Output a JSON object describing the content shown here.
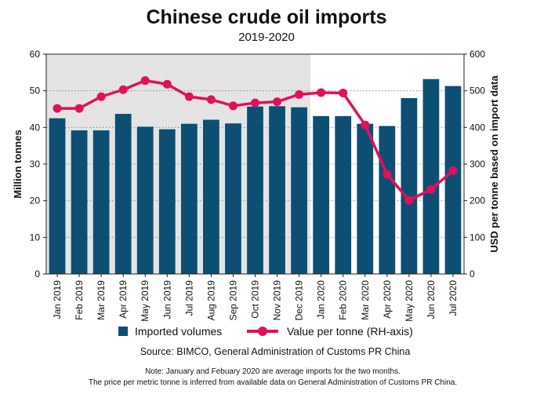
{
  "chart_data": {
    "type": "bar",
    "title": "Chinese crude oil imports",
    "subtitle": "2019-2020",
    "ylabel": "Million tonnes",
    "ylabel_right": "USD per tonne based on import data",
    "ylim": [
      0,
      60
    ],
    "ylim_right": [
      0,
      600
    ],
    "yticks": [
      0,
      10,
      20,
      30,
      40,
      50,
      60
    ],
    "yticks_right": [
      0,
      100,
      200,
      300,
      400,
      500,
      600
    ],
    "categories": [
      "Jan 2019",
      "Feb 2019",
      "Mar 2019",
      "Apr 2019",
      "May 2019",
      "Jun 2019",
      "Jul 2019",
      "Aug 2019",
      "Sep 2019",
      "Oct 2019",
      "Nov 2019",
      "Dec 2019",
      "Jan 2020",
      "Feb 2020",
      "Mar 2020",
      "Apr 2020",
      "May 2020",
      "Jun 2020",
      "Jul 2020"
    ],
    "series": [
      {
        "name": "Imported volumes",
        "type": "bar",
        "axis": "left",
        "color": "#0d4f73",
        "values": [
          42.5,
          39.2,
          39.2,
          43.7,
          40.2,
          39.5,
          41.0,
          42.1,
          41.1,
          45.7,
          45.8,
          45.5,
          43.1,
          43.1,
          41.0,
          40.4,
          48.0,
          53.2,
          51.3
        ]
      },
      {
        "name": "Value per tonne (RH-axis)",
        "type": "line",
        "axis": "right",
        "color": "#e0105a",
        "values": [
          452,
          452,
          484,
          503,
          528,
          518,
          484,
          476,
          459,
          467,
          470,
          490,
          495,
          494,
          407,
          272,
          201,
          231,
          282
        ]
      }
    ],
    "shaded_region": {
      "from": "Jan 2019",
      "to": "Dec 2019",
      "color": "#e4e4e4"
    },
    "grid": "horizontal dotted",
    "legend": "bottom"
  },
  "source": "Source: BIMCO, General Administration of Customs PR China",
  "notes": [
    "Note: January and Febuary 2020 are average imports for the two months.",
    "The price per metric tonne is inferred from available data on General Administration of Customs PR China."
  ]
}
